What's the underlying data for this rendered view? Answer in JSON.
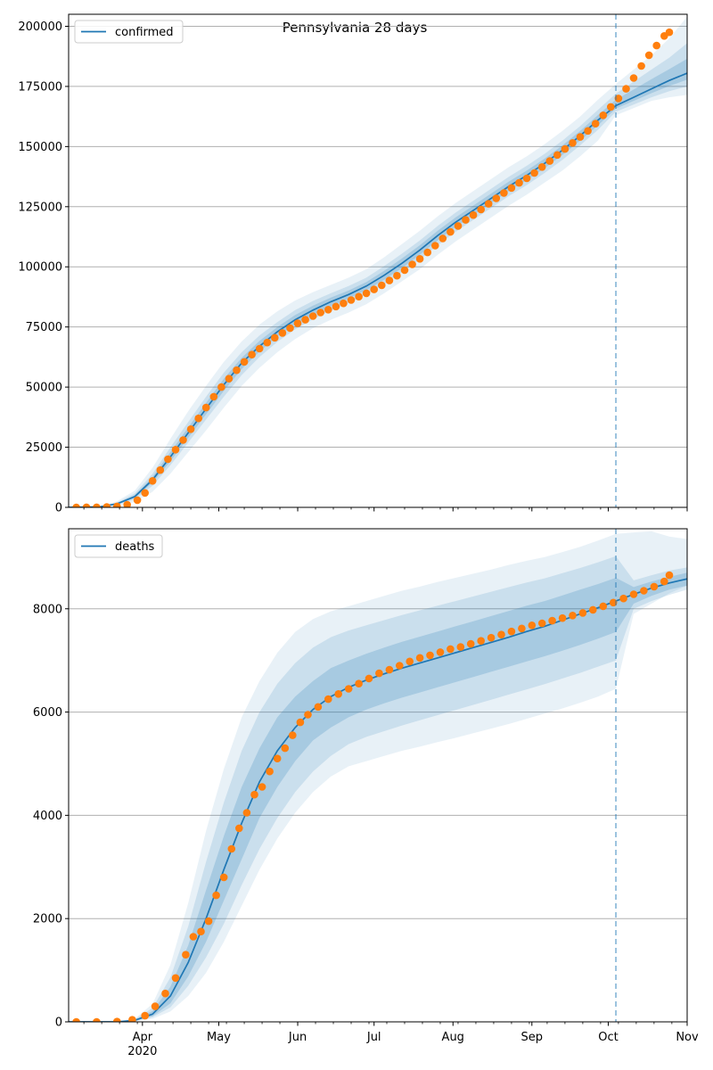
{
  "figure_title": "Pennsylvania 28 days",
  "colors": {
    "model_line": "#1f77b4",
    "observed": "#ff7f0e",
    "band": "#1f77b4",
    "grid": "#b0b0b0",
    "cutoff": "#1f77b4"
  },
  "x_axis": {
    "type": "date",
    "range": [
      "2020-03-03",
      "2020-11-01"
    ],
    "major_ticks": [
      {
        "date": "2020-04-01",
        "label": "Apr",
        "label2": "2020"
      },
      {
        "date": "2020-05-01",
        "label": "May"
      },
      {
        "date": "2020-06-01",
        "label": "Jun"
      },
      {
        "date": "2020-07-01",
        "label": "Jul"
      },
      {
        "date": "2020-08-01",
        "label": "Aug"
      },
      {
        "date": "2020-09-01",
        "label": "Sep"
      },
      {
        "date": "2020-10-01",
        "label": "Oct"
      },
      {
        "date": "2020-11-01",
        "label": "Nov"
      }
    ],
    "minor_ticks": "weekly (Mondays)"
  },
  "chart_data": [
    {
      "type": "line",
      "legend": "confirmed",
      "legend_position": "upper-left",
      "grid": "horizontal",
      "ylim": [
        0,
        205000
      ],
      "yticks": [
        0,
        25000,
        50000,
        75000,
        100000,
        125000,
        150000,
        175000,
        200000
      ],
      "forecast_start": "2020-10-04",
      "model_line": {
        "x": [
          "2020-03-03",
          "2020-03-15",
          "2020-03-22",
          "2020-03-29",
          "2020-04-05",
          "2020-04-12",
          "2020-04-19",
          "2020-04-26",
          "2020-05-03",
          "2020-05-10",
          "2020-05-17",
          "2020-05-24",
          "2020-05-31",
          "2020-06-07",
          "2020-06-14",
          "2020-06-21",
          "2020-06-28",
          "2020-07-05",
          "2020-07-12",
          "2020-07-19",
          "2020-07-26",
          "2020-08-02",
          "2020-08-09",
          "2020-08-16",
          "2020-08-23",
          "2020-08-30",
          "2020-09-06",
          "2020-09-13",
          "2020-09-20",
          "2020-09-27",
          "2020-10-04",
          "2020-10-11",
          "2020-10-18",
          "2020-10-25",
          "2020-11-01"
        ],
        "y": [
          0,
          200,
          1500,
          4500,
          11500,
          21000,
          31000,
          41000,
          51000,
          60000,
          67000,
          73000,
          78000,
          82000,
          85500,
          88500,
          92000,
          96500,
          101500,
          107000,
          113000,
          118500,
          123500,
          128500,
          133500,
          138000,
          143000,
          148500,
          154500,
          161000,
          167000,
          170500,
          174000,
          177500,
          180500
        ]
      },
      "bands": [
        {
          "level": "outer",
          "upper": [
            0,
            300,
            2500,
            7000,
            16500,
            28500,
            40000,
            50500,
            60500,
            69000,
            76000,
            81500,
            86000,
            89500,
            92500,
            95500,
            99000,
            104000,
            109500,
            115000,
            121000,
            126500,
            131500,
            136500,
            141500,
            146000,
            151000,
            156500,
            162500,
            169500,
            176000,
            182000,
            188000,
            195000,
            204000
          ],
          "lower": [
            0,
            100,
            600,
            2200,
            6500,
            14000,
            23000,
            32000,
            41500,
            50500,
            58000,
            64500,
            70000,
            74500,
            78000,
            81000,
            84500,
            89000,
            94000,
            99000,
            105000,
            110500,
            115500,
            120500,
            125500,
            130000,
            135000,
            140000,
            146000,
            152500,
            163000,
            166000,
            169000,
            170500,
            171500
          ]
        },
        {
          "level": "middle",
          "upper": [
            0,
            250,
            2000,
            5800,
            14000,
            25000,
            35500,
            46000,
            56000,
            64500,
            71500,
            77000,
            82000,
            85800,
            89000,
            92000,
            95500,
            100300,
            105500,
            111000,
            117000,
            122500,
            127500,
            132500,
            137500,
            142000,
            147000,
            152500,
            158500,
            165300,
            172000,
            177000,
            182000,
            187000,
            193000
          ],
          "lower": [
            0,
            150,
            1000,
            3300,
            9000,
            17500,
            27000,
            36500,
            46000,
            55000,
            62500,
            68800,
            74000,
            78200,
            81800,
            85000,
            88500,
            92800,
            97800,
            103000,
            109000,
            114500,
            119500,
            124500,
            129500,
            134000,
            139000,
            144500,
            150500,
            157000,
            164500,
            167500,
            170500,
            173000,
            175000
          ]
        },
        {
          "level": "inner",
          "upper": [
            0,
            225,
            1750,
            5100,
            12700,
            23000,
            33200,
            43500,
            53500,
            62200,
            69200,
            75000,
            80000,
            83900,
            87200,
            90200,
            93700,
            98400,
            103500,
            109000,
            115000,
            120500,
            125500,
            130500,
            135500,
            140000,
            145000,
            150500,
            156500,
            163100,
            169500,
            173700,
            178000,
            182200,
            186500
          ],
          "lower": [
            0,
            175,
            1250,
            3900,
            10300,
            19200,
            28900,
            38700,
            48500,
            57500,
            64800,
            71000,
            76000,
            80100,
            83600,
            86800,
            90300,
            94600,
            99500,
            105000,
            111000,
            116500,
            121500,
            126500,
            131500,
            136000,
            141000,
            146500,
            152500,
            158800,
            165800,
            169000,
            172200,
            175200,
            177800
          ]
        }
      ],
      "observed": {
        "x": [
          "2020-03-06",
          "2020-03-10",
          "2020-03-14",
          "2020-03-18",
          "2020-03-22",
          "2020-03-26",
          "2020-03-30",
          "2020-04-02",
          "2020-04-05",
          "2020-04-08",
          "2020-04-11",
          "2020-04-14",
          "2020-04-17",
          "2020-04-20",
          "2020-04-23",
          "2020-04-26",
          "2020-04-29",
          "2020-05-02",
          "2020-05-05",
          "2020-05-08",
          "2020-05-11",
          "2020-05-14",
          "2020-05-17",
          "2020-05-20",
          "2020-05-23",
          "2020-05-26",
          "2020-05-29",
          "2020-06-01",
          "2020-06-04",
          "2020-06-07",
          "2020-06-10",
          "2020-06-13",
          "2020-06-16",
          "2020-06-19",
          "2020-06-22",
          "2020-06-25",
          "2020-06-28",
          "2020-07-01",
          "2020-07-04",
          "2020-07-07",
          "2020-07-10",
          "2020-07-13",
          "2020-07-16",
          "2020-07-19",
          "2020-07-22",
          "2020-07-25",
          "2020-07-28",
          "2020-07-31",
          "2020-08-03",
          "2020-08-06",
          "2020-08-09",
          "2020-08-12",
          "2020-08-15",
          "2020-08-18",
          "2020-08-21",
          "2020-08-24",
          "2020-08-27",
          "2020-08-30",
          "2020-09-02",
          "2020-09-05",
          "2020-09-08",
          "2020-09-11",
          "2020-09-14",
          "2020-09-17",
          "2020-09-20",
          "2020-09-23",
          "2020-09-26",
          "2020-09-29",
          "2020-10-02",
          "2020-10-05",
          "2020-10-08",
          "2020-10-11",
          "2020-10-14",
          "2020-10-17",
          "2020-10-20",
          "2020-10-23",
          "2020-10-25"
        ],
        "y": [
          10,
          20,
          50,
          130,
          400,
          1100,
          3000,
          6000,
          11000,
          15500,
          20000,
          24000,
          28000,
          32500,
          37000,
          41500,
          46000,
          50000,
          53500,
          57000,
          60500,
          63500,
          66000,
          68500,
          70500,
          72500,
          74500,
          76500,
          78000,
          79500,
          81000,
          82200,
          83500,
          84800,
          86200,
          87600,
          89000,
          90600,
          92300,
          94300,
          96300,
          98600,
          101000,
          103300,
          106000,
          108800,
          111800,
          114500,
          117000,
          119500,
          121500,
          123800,
          126200,
          128500,
          130700,
          132800,
          134900,
          136800,
          139000,
          141500,
          144000,
          146500,
          149000,
          151500,
          154000,
          156500,
          159500,
          163000,
          166500,
          170000,
          174000,
          178500,
          183500,
          188000,
          192000,
          196000,
          197500
        ]
      }
    },
    {
      "type": "line",
      "legend": "deaths",
      "legend_position": "upper-left",
      "grid": "horizontal",
      "ylim": [
        0,
        9550
      ],
      "yticks": [
        0,
        2000,
        4000,
        6000,
        8000
      ],
      "forecast_start": "2020-10-04",
      "model_line": {
        "x": [
          "2020-03-03",
          "2020-03-22",
          "2020-03-29",
          "2020-04-05",
          "2020-04-12",
          "2020-04-19",
          "2020-04-26",
          "2020-05-03",
          "2020-05-10",
          "2020-05-17",
          "2020-05-24",
          "2020-05-31",
          "2020-06-07",
          "2020-06-14",
          "2020-06-21",
          "2020-06-28",
          "2020-07-05",
          "2020-07-12",
          "2020-07-19",
          "2020-07-26",
          "2020-08-02",
          "2020-08-09",
          "2020-08-16",
          "2020-08-23",
          "2020-08-30",
          "2020-09-06",
          "2020-09-13",
          "2020-09-20",
          "2020-09-27",
          "2020-10-04",
          "2020-10-11",
          "2020-10-18",
          "2020-10-25",
          "2020-11-01"
        ],
        "y": [
          0,
          0,
          30,
          150,
          500,
          1150,
          2000,
          2950,
          3850,
          4650,
          5250,
          5700,
          6050,
          6300,
          6480,
          6620,
          6740,
          6850,
          6950,
          7050,
          7150,
          7250,
          7350,
          7450,
          7560,
          7660,
          7780,
          7900,
          8020,
          8150,
          8280,
          8400,
          8500,
          8580
        ]
      },
      "bands": [
        {
          "level": "outer",
          "upper": [
            0,
            0,
            60,
            350,
            1100,
            2300,
            3700,
            4900,
            5900,
            6600,
            7150,
            7550,
            7800,
            7950,
            8050,
            8150,
            8250,
            8350,
            8430,
            8520,
            8600,
            8680,
            8760,
            8850,
            8930,
            9000,
            9100,
            9200,
            9320,
            9450,
            9480,
            9500,
            9400,
            9350
          ],
          "lower": [
            0,
            0,
            10,
            60,
            200,
            500,
            950,
            1550,
            2250,
            2950,
            3550,
            4050,
            4450,
            4750,
            4950,
            5050,
            5150,
            5250,
            5330,
            5420,
            5500,
            5590,
            5680,
            5770,
            5870,
            5970,
            6070,
            6180,
            6300,
            6450,
            7900,
            8100,
            8300,
            8450
          ]
        },
        {
          "level": "middle",
          "upper": [
            0,
            0,
            50,
            270,
            860,
            1850,
            3100,
            4250,
            5250,
            6000,
            6550,
            6950,
            7250,
            7450,
            7580,
            7680,
            7780,
            7880,
            7970,
            8060,
            8150,
            8240,
            8330,
            8420,
            8510,
            8590,
            8690,
            8790,
            8900,
            9020,
            8550,
            8650,
            8740,
            8800
          ],
          "lower": [
            0,
            0,
            15,
            90,
            280,
            700,
            1250,
            1900,
            2650,
            3350,
            3950,
            4450,
            4850,
            5150,
            5380,
            5520,
            5630,
            5740,
            5840,
            5940,
            6040,
            6140,
            6240,
            6340,
            6440,
            6540,
            6650,
            6760,
            6880,
            7000,
            8000,
            8150,
            8270,
            8370
          ]
        },
        {
          "level": "inner",
          "upper": [
            0,
            0,
            40,
            210,
            680,
            1480,
            2550,
            3600,
            4550,
            5300,
            5900,
            6300,
            6600,
            6850,
            7000,
            7130,
            7250,
            7360,
            7460,
            7560,
            7660,
            7760,
            7860,
            7960,
            8060,
            8150,
            8260,
            8370,
            8480,
            8600,
            8420,
            8530,
            8620,
            8700
          ],
          "lower": [
            0,
            0,
            20,
            110,
            360,
            880,
            1550,
            2350,
            3150,
            3950,
            4550,
            5050,
            5450,
            5700,
            5900,
            6050,
            6170,
            6280,
            6380,
            6480,
            6580,
            6680,
            6780,
            6880,
            6980,
            7080,
            7190,
            7300,
            7420,
            7550,
            8100,
            8250,
            8370,
            8450
          ]
        }
      ],
      "observed": {
        "x": [
          "2020-03-06",
          "2020-03-14",
          "2020-03-22",
          "2020-03-28",
          "2020-04-02",
          "2020-04-06",
          "2020-04-10",
          "2020-04-14",
          "2020-04-18",
          "2020-04-21",
          "2020-04-24",
          "2020-04-27",
          "2020-04-30",
          "2020-05-03",
          "2020-05-06",
          "2020-05-09",
          "2020-05-12",
          "2020-05-15",
          "2020-05-18",
          "2020-05-21",
          "2020-05-24",
          "2020-05-27",
          "2020-05-30",
          "2020-06-02",
          "2020-06-05",
          "2020-06-09",
          "2020-06-13",
          "2020-06-17",
          "2020-06-21",
          "2020-06-25",
          "2020-06-29",
          "2020-07-03",
          "2020-07-07",
          "2020-07-11",
          "2020-07-15",
          "2020-07-19",
          "2020-07-23",
          "2020-07-27",
          "2020-07-31",
          "2020-08-04",
          "2020-08-08",
          "2020-08-12",
          "2020-08-16",
          "2020-08-20",
          "2020-08-24",
          "2020-08-28",
          "2020-09-01",
          "2020-09-05",
          "2020-09-09",
          "2020-09-13",
          "2020-09-17",
          "2020-09-21",
          "2020-09-25",
          "2020-09-29",
          "2020-10-03",
          "2020-10-07",
          "2020-10-11",
          "2020-10-15",
          "2020-10-19",
          "2020-10-23",
          "2020-10-25"
        ],
        "y": [
          0,
          0,
          5,
          40,
          120,
          300,
          550,
          850,
          1300,
          1650,
          1750,
          1950,
          2450,
          2800,
          3350,
          3750,
          4050,
          4400,
          4550,
          4850,
          5100,
          5300,
          5550,
          5800,
          5950,
          6100,
          6250,
          6350,
          6450,
          6550,
          6650,
          6750,
          6820,
          6900,
          6980,
          7050,
          7100,
          7160,
          7220,
          7260,
          7320,
          7380,
          7440,
          7500,
          7560,
          7620,
          7680,
          7720,
          7770,
          7820,
          7870,
          7920,
          7980,
          8050,
          8120,
          8200,
          8280,
          8350,
          8430,
          8530,
          8650
        ]
      }
    }
  ]
}
